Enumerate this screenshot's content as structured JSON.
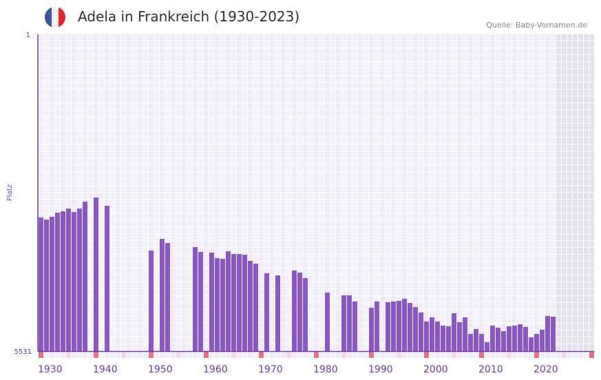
{
  "header": {
    "title": "Adela in Frankreich (1930-2023)",
    "source": "Quelle: Baby-Vornamen.de",
    "flag": "france-flag-icon"
  },
  "colors": {
    "bar": "#8c55c8",
    "axis": "#6a3aa8",
    "decade_marker": "#e8747c",
    "mid_marker": "#f5d8e2",
    "grid_bg": "#eeeaf8",
    "future_bg": "#e4e0ec"
  },
  "chart_data": {
    "type": "bar",
    "title": "Adela in Frankreich (1930-2023)",
    "xlabel": "",
    "ylabel": "Platz",
    "ylim": [
      1,
      5531
    ],
    "y_inverted": true,
    "xlim": [
      1930,
      2030
    ],
    "yticks": [
      "1",
      "5531"
    ],
    "xticks": [
      "1930",
      "1940",
      "1950",
      "1960",
      "1970",
      "1980",
      "1990",
      "2000",
      "2010",
      "2020"
    ],
    "data_years_end": 2023,
    "points": [
      [
        1930,
        3199
      ],
      [
        1931,
        3235
      ],
      [
        1932,
        3187
      ],
      [
        1933,
        3115
      ],
      [
        1934,
        3091
      ],
      [
        1935,
        3043
      ],
      [
        1936,
        3103
      ],
      [
        1937,
        3043
      ],
      [
        1938,
        2922
      ],
      [
        1940,
        2850
      ],
      [
        1942,
        2994
      ],
      [
        1950,
        3776
      ],
      [
        1952,
        3572
      ],
      [
        1953,
        3644
      ],
      [
        1958,
        3716
      ],
      [
        1959,
        3800
      ],
      [
        1961,
        3812
      ],
      [
        1962,
        3908
      ],
      [
        1963,
        3920
      ],
      [
        1964,
        3788
      ],
      [
        1965,
        3836
      ],
      [
        1966,
        3836
      ],
      [
        1967,
        3848
      ],
      [
        1968,
        3956
      ],
      [
        1969,
        4004
      ],
      [
        1971,
        4173
      ],
      [
        1973,
        4209
      ],
      [
        1976,
        4125
      ],
      [
        1977,
        4161
      ],
      [
        1978,
        4257
      ],
      [
        1982,
        4509
      ],
      [
        1985,
        4557
      ],
      [
        1986,
        4557
      ],
      [
        1987,
        4665
      ],
      [
        1990,
        4774
      ],
      [
        1991,
        4665
      ],
      [
        1993,
        4678
      ],
      [
        1994,
        4665
      ],
      [
        1995,
        4653
      ],
      [
        1996,
        4617
      ],
      [
        1997,
        4690
      ],
      [
        1998,
        4762
      ],
      [
        1999,
        4858
      ],
      [
        2000,
        5014
      ],
      [
        2001,
        4942
      ],
      [
        2002,
        5014
      ],
      [
        2003,
        5086
      ],
      [
        2004,
        5098
      ],
      [
        2005,
        4870
      ],
      [
        2006,
        5026
      ],
      [
        2007,
        4942
      ],
      [
        2008,
        5231
      ],
      [
        2009,
        5147
      ],
      [
        2010,
        5231
      ],
      [
        2011,
        5375
      ],
      [
        2012,
        5086
      ],
      [
        2013,
        5122
      ],
      [
        2014,
        5183
      ],
      [
        2015,
        5098
      ],
      [
        2016,
        5086
      ],
      [
        2017,
        5062
      ],
      [
        2018,
        5110
      ],
      [
        2019,
        5291
      ],
      [
        2020,
        5231
      ],
      [
        2021,
        5158
      ],
      [
        2022,
        4918
      ],
      [
        2023,
        4930
      ]
    ]
  }
}
